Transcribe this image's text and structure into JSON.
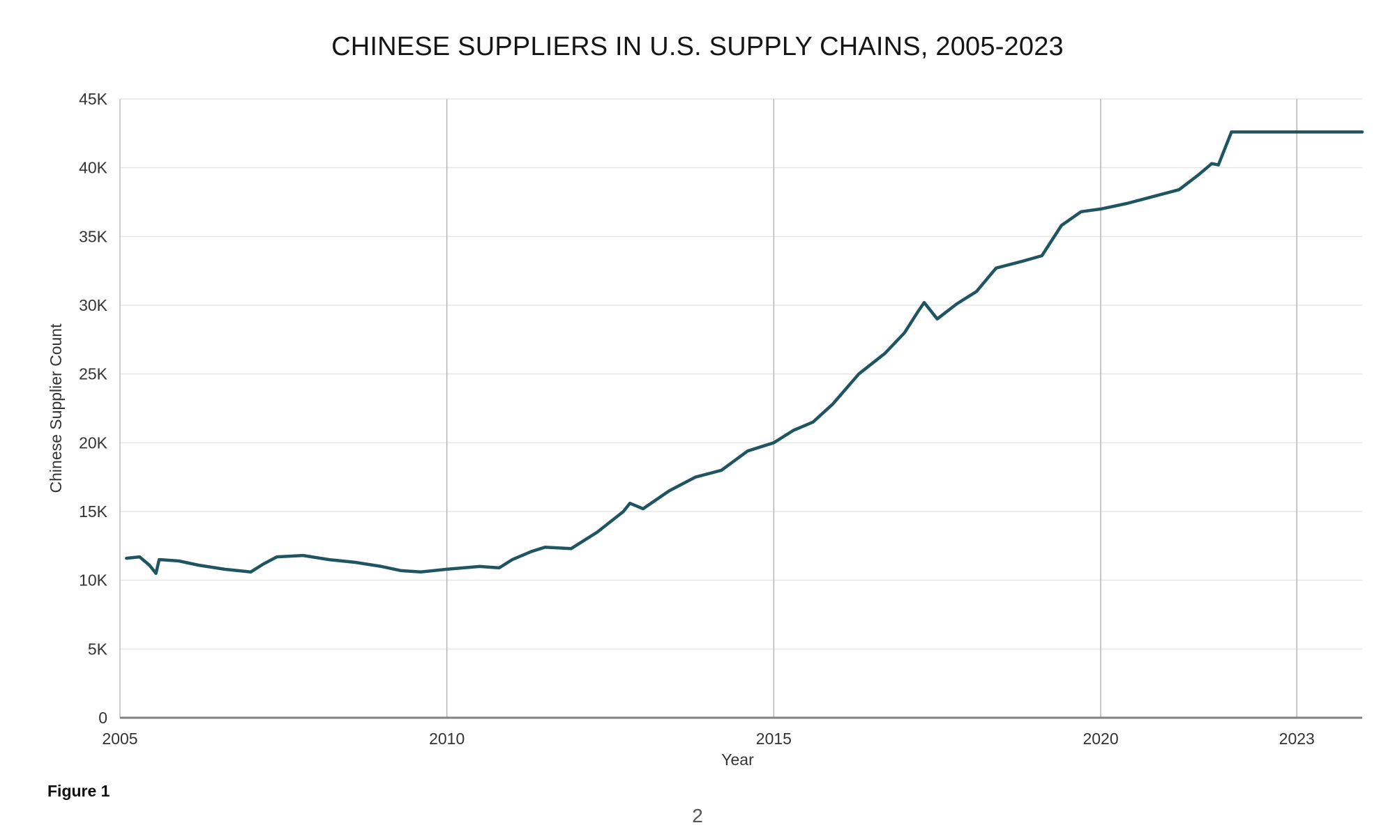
{
  "page": {
    "figure_caption": "Figure 1",
    "page_number": "2"
  },
  "chart_data": {
    "type": "line",
    "title": "CHINESE SUPPLIERS IN U.S. SUPPLY CHAINS, 2005-2023",
    "xlabel": "Year",
    "ylabel": "Chinese Supplier Count",
    "xlim": [
      2005,
      2024
    ],
    "ylim": [
      0,
      45000
    ],
    "x_ticks": [
      2005,
      2010,
      2015,
      2020,
      2023
    ],
    "x_tick_labels": [
      "2005",
      "2010",
      "2015",
      "2020",
      "2023"
    ],
    "y_ticks": [
      0,
      5000,
      10000,
      15000,
      20000,
      25000,
      30000,
      35000,
      40000,
      45000
    ],
    "y_tick_labels": [
      "0",
      "5K",
      "10K",
      "15K",
      "20K",
      "25K",
      "30K",
      "35K",
      "40K",
      "45K"
    ],
    "grid": "horizontal gridlines; vertical lines at labeled years",
    "legend": "none",
    "line_color": "#1f5561",
    "series": [
      {
        "x": [
          2005.1,
          2005.3,
          2005.45,
          2005.55,
          2005.6,
          2005.62,
          2005.9,
          2006.2,
          2006.6,
          2007.0,
          2007.2,
          2007.4,
          2007.8,
          2008.2,
          2008.6,
          2009.0,
          2009.3,
          2009.6,
          2010.0,
          2010.5,
          2010.8,
          2011.0,
          2011.3,
          2011.5,
          2011.9,
          2012.3,
          2012.7,
          2012.8,
          2013.0,
          2013.4,
          2013.8,
          2014.2,
          2014.6,
          2015.0,
          2015.3,
          2015.6,
          2015.9,
          2016.3,
          2016.7,
          2017.0,
          2017.2,
          2017.3,
          2017.5,
          2017.8,
          2018.1,
          2018.4,
          2018.8,
          2019.1,
          2019.4,
          2019.7,
          2020.0,
          2020.4,
          2020.8,
          2021.2,
          2021.5,
          2021.7,
          2021.8,
          2022.0,
          2024.0
        ],
        "y": [
          11600,
          11700,
          11100,
          10500,
          11500,
          11500,
          11400,
          11100,
          10800,
          10600,
          11200,
          11700,
          11800,
          11500,
          11300,
          11000,
          10700,
          10600,
          10800,
          11000,
          10900,
          11500,
          12100,
          12400,
          12300,
          13500,
          15000,
          15600,
          15200,
          16500,
          17500,
          18000,
          19400,
          20000,
          20900,
          21500,
          22800,
          25000,
          26500,
          28000,
          29500,
          30200,
          29000,
          30100,
          31000,
          32700,
          33200,
          33600,
          35800,
          36800,
          37000,
          37400,
          37900,
          38400,
          39500,
          40300,
          40200,
          42600,
          42600
        ]
      }
    ]
  }
}
